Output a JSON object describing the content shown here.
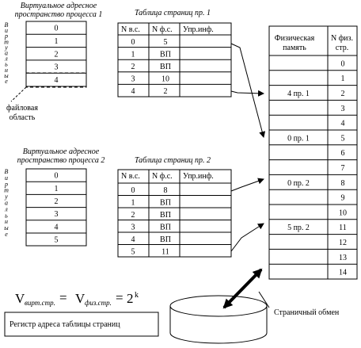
{
  "process1": {
    "title_line1": "Виртуальное адресное",
    "title_line2": "пространство процесса 1",
    "side_label": [
      "В",
      "и",
      "р",
      "т",
      "у",
      "а",
      "л",
      "ь",
      "н",
      "ы",
      "е"
    ],
    "pages": [
      "0",
      "1",
      "2",
      "3",
      "4"
    ],
    "swap_label_line1": "файловая",
    "swap_label_line2": "область"
  },
  "process2": {
    "title_line1": "Виртуальное адресное",
    "title_line2": "пространство процесса 2",
    "side_label": [
      "В",
      "и",
      "р",
      "т",
      "у",
      "а",
      "л",
      "ь",
      "н",
      "ы",
      "е"
    ],
    "pages": [
      "0",
      "1",
      "2",
      "3",
      "4",
      "5"
    ]
  },
  "table1": {
    "title": "Таблица страниц пр. 1",
    "headers": [
      "N в.с.",
      "N ф.с.",
      "Упр.инф."
    ],
    "rows": [
      {
        "vpage": "0",
        "fpage": "5"
      },
      {
        "vpage": "1",
        "fpage": "ВП"
      },
      {
        "vpage": "2",
        "fpage": "ВП"
      },
      {
        "vpage": "3",
        "fpage": "10"
      },
      {
        "vpage": "4",
        "fpage": "2"
      }
    ]
  },
  "table2": {
    "title": "Таблица страниц пр. 2",
    "headers": [
      "N в.с.",
      "N ф.с.",
      "Упр.инф."
    ],
    "rows": [
      {
        "vpage": "0",
        "fpage": "8"
      },
      {
        "vpage": "1",
        "fpage": "ВП"
      },
      {
        "vpage": "2",
        "fpage": "ВП"
      },
      {
        "vpage": "3",
        "fpage": "ВП"
      },
      {
        "vpage": "4",
        "fpage": "ВП"
      },
      {
        "vpage": "5",
        "fpage": "11"
      }
    ]
  },
  "physical": {
    "header_line1": "Физическая",
    "header_line2": "память",
    "num_header_line1": "N физ.",
    "num_header_line2": "стр.",
    "frame_numbers": [
      "0",
      "1",
      "2",
      "3",
      "4",
      "5",
      "6",
      "7",
      "8",
      "9",
      "10",
      "11",
      "12",
      "13",
      "14"
    ],
    "labels": {
      "2": "4 пр. 1",
      "5": "0 пр. 1",
      "8": "0 пр. 2",
      "11": "5 пр. 2"
    }
  },
  "formula": {
    "v": "V",
    "sub_virt": "вирт.стр.",
    "eq1": "=",
    "sub_phys": "физ.стр.",
    "eq2": "=",
    "base": "2",
    "exp": "k"
  },
  "register_label": "Регистр адреса таблицы страниц",
  "swap_label": "Страничный обмен"
}
